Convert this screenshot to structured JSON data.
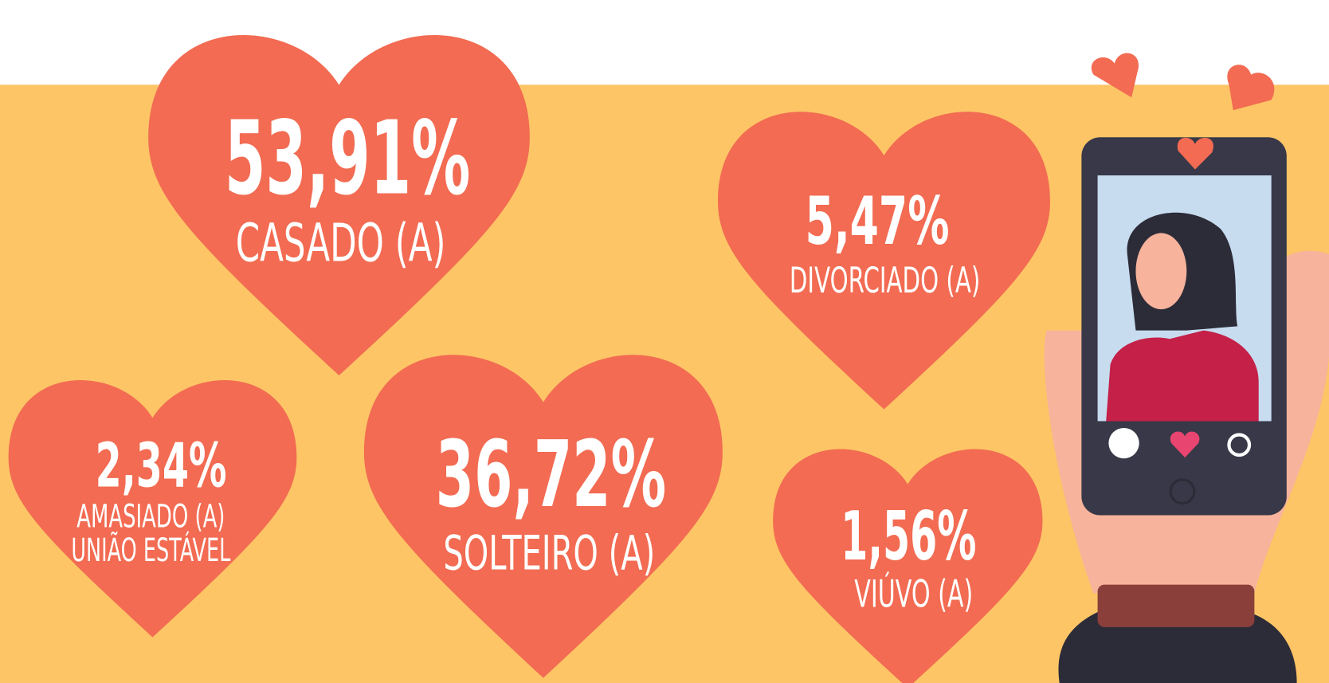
{
  "items": [
    {
      "percent": "53,91%",
      "label": [
        "CASADO (A)"
      ]
    },
    {
      "percent": "5,47%",
      "label": [
        "DIVORCIADO (A)"
      ]
    },
    {
      "percent": "2,34%",
      "label": [
        "AMASIADO (A)",
        "UNIÃO ESTÁVEL"
      ]
    },
    {
      "percent": "36,72%",
      "label": [
        "SOLTEIRO (A)"
      ]
    },
    {
      "percent": "1,56%",
      "label": [
        "VIÚVO (A)"
      ]
    }
  ]
}
